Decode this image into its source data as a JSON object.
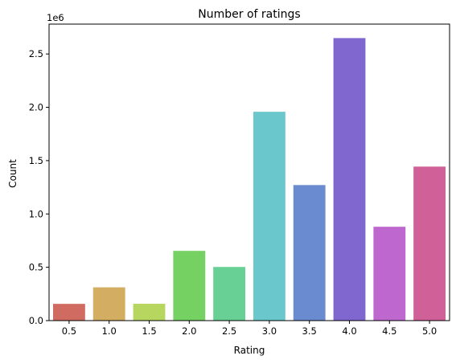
{
  "chart_data": {
    "type": "bar",
    "title": "Number of ratings",
    "xlabel": "Rating",
    "ylabel": "Count",
    "y_offset_label": "1e6",
    "categories": [
      "0.5",
      "1.0",
      "1.5",
      "2.0",
      "2.5",
      "3.0",
      "3.5",
      "4.0",
      "4.5",
      "5.0"
    ],
    "values": [
      157000,
      312000,
      158000,
      654000,
      503000,
      1958000,
      1271000,
      2649000,
      880000,
      1444000
    ],
    "colors": [
      "#d06b62",
      "#d2ad62",
      "#b7d65f",
      "#76d163",
      "#68cf95",
      "#6ac8cd",
      "#6a8bd0",
      "#8066cf",
      "#be67cf",
      "#cf6098"
    ],
    "y_ticks": [
      0,
      500000,
      1000000,
      1500000,
      2000000,
      2500000
    ],
    "y_tick_labels": [
      "0.0",
      "0.5",
      "1.0",
      "1.5",
      "2.0",
      "2.5"
    ],
    "ylim": [
      0,
      2780000
    ],
    "grid": false,
    "legend": "none"
  }
}
